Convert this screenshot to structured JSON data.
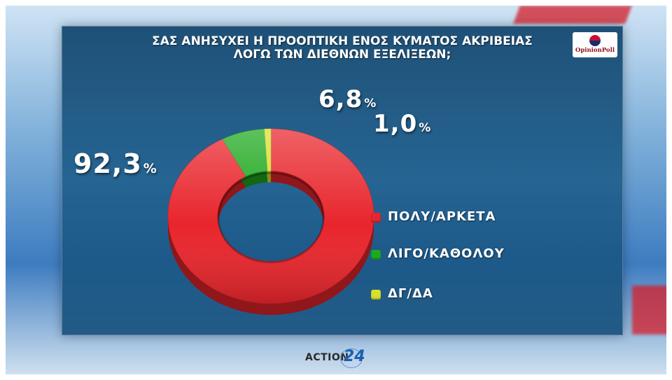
{
  "brand": {
    "poll_logo_text": "OpinionPoll",
    "channel_text": "ACTION",
    "channel_number": "24"
  },
  "legend": [
    {
      "label": "ΠΟΛΥ/ΑΡΚΕΤΑ",
      "color": "#e8252c"
    },
    {
      "label": "ΛΙΓΟ/ΚΑΘΟΛΟΥ",
      "color": "#1fa81f"
    },
    {
      "label": "ΔΓ/ΔΑ",
      "color": "#d8e02a"
    }
  ],
  "percent_sign": "%",
  "chart_data": {
    "type": "pie",
    "style": "donut",
    "title_lines": [
      "ΣΑΣ ΑΝΗΣΥΧΕΙ Η ΠΡΟΟΠΤΙΚΗ ΕΝΟΣ ΚΥΜΑΤΟΣ ΑΚΡΙΒΕΙΑΣ",
      "ΛΟΓΩ ΤΩΝ ΔΙΕΘΝΩΝ ΕΞΕΛΙΞΕΩΝ;"
    ],
    "categories": [
      "ΠΟΛΥ/ΑΡΚΕΤΑ",
      "ΛΙΓΟ/ΚΑΘΟΛΟΥ",
      "ΔΓ/ΔΑ"
    ],
    "values": [
      92.3,
      6.8,
      1.0
    ],
    "value_labels": [
      "92,3",
      "6,8",
      "1,0"
    ],
    "colors": [
      "#e8252c",
      "#1fa81f",
      "#d8e02a"
    ],
    "legend_position": "right"
  }
}
